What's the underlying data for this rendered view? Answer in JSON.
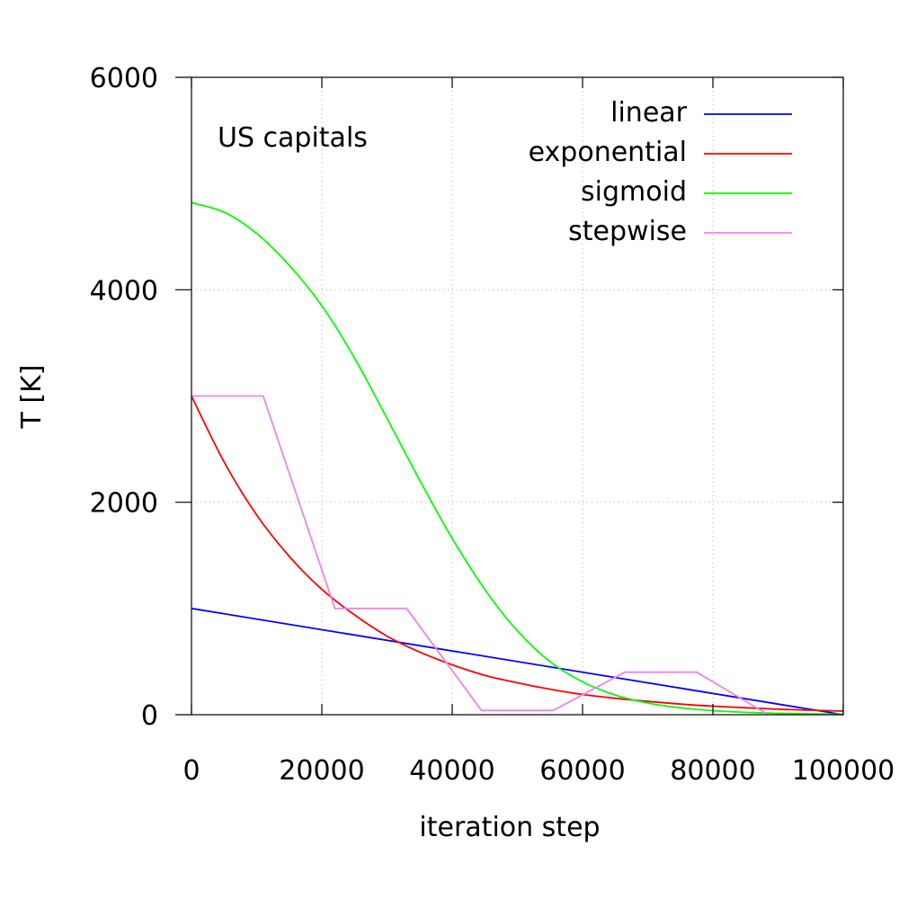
{
  "chart_data": {
    "type": "line",
    "title": "",
    "xlabel": "iteration step",
    "ylabel": "T [K]",
    "xlim": [
      0,
      100000
    ],
    "ylim": [
      0,
      6000
    ],
    "xticks": [
      0,
      20000,
      40000,
      60000,
      80000,
      100000
    ],
    "yticks": [
      0,
      2000,
      4000,
      6000
    ],
    "xtick_labels": [
      "0",
      "20000",
      "40000",
      "60000",
      "80000",
      "100000"
    ],
    "ytick_labels": [
      "0",
      "2000",
      "4000",
      "6000"
    ],
    "grid": true,
    "legend_position": "top-right",
    "annotation": "US capitals",
    "series": [
      {
        "name": "linear",
        "color": "#0000ff",
        "x": [
          0,
          100000
        ],
        "y": [
          1000,
          0
        ]
      },
      {
        "name": "exponential",
        "color": "#ff0000",
        "x": [
          0,
          5000,
          10000,
          15000,
          20000,
          25000,
          30000,
          35000,
          40000,
          45000,
          50000,
          55000,
          60000,
          65000,
          70000,
          75000,
          80000,
          85000,
          90000,
          95000,
          100000
        ],
        "y": [
          3000,
          2380,
          1880,
          1490,
          1180,
          940,
          740,
          590,
          470,
          370,
          300,
          240,
          190,
          155,
          125,
          100,
          80,
          65,
          52,
          42,
          34
        ]
      },
      {
        "name": "sigmoid",
        "color": "#00ff00",
        "x": [
          0,
          5000,
          10000,
          15000,
          20000,
          25000,
          30000,
          35000,
          40000,
          45000,
          50000,
          55000,
          60000,
          65000,
          70000,
          75000,
          80000,
          85000,
          90000,
          95000,
          100000
        ],
        "y": [
          4820,
          4730,
          4530,
          4230,
          3850,
          3360,
          2790,
          2210,
          1660,
          1180,
          790,
          500,
          310,
          185,
          110,
          65,
          38,
          22,
          13,
          8,
          5
        ]
      },
      {
        "name": "stepwise",
        "color": "#ee82ee",
        "x": [
          0,
          11000,
          22000,
          33000,
          44500,
          55500,
          66500,
          77500,
          88500
        ],
        "y": [
          3000,
          3000,
          1000,
          1000,
          40,
          40,
          400,
          400,
          0
        ]
      }
    ]
  }
}
